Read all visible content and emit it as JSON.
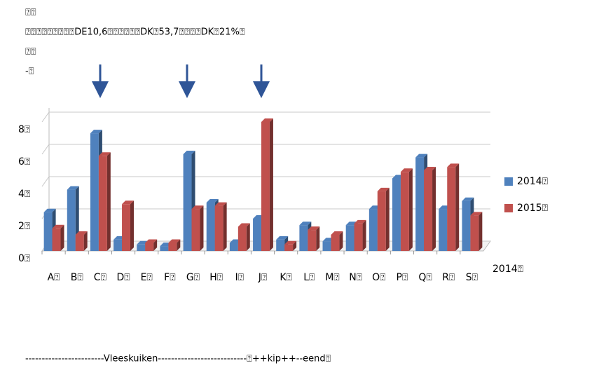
{
  "chart_data": {
    "type": "bar3d",
    "notes": [
      "⍰⍰",
      "⍰⍰⍰⍰⍰⍰⍰⍰⍰DE10,6⍰⍰⍰⍰⍰⍰DK⍰53,7⍰⍰⍰⍰DK⍰21%⍰",
      "⍰⍰",
      "-⍰"
    ],
    "categories": [
      "A⍰",
      "B⍰",
      "C⍰",
      "D⍰",
      "E⍰",
      "F⍰",
      "G⍰",
      "H⍰",
      "I⍰",
      "J⍰",
      "K⍰",
      "L⍰",
      "M⍰",
      "N⍰",
      "O⍰",
      "P⍰",
      "Q⍰",
      "R⍰",
      "S⍰"
    ],
    "series": [
      {
        "name": "2014⍰",
        "color": "#4f81bd",
        "values": [
          2.4,
          3.8,
          7.3,
          0.7,
          0.4,
          0.3,
          6.0,
          3.0,
          0.5,
          2.0,
          0.7,
          1.6,
          0.6,
          1.6,
          2.6,
          4.5,
          5.8,
          2.6,
          3.1
        ]
      },
      {
        "name": "2015⍰",
        "color": "#c0504d",
        "values": [
          1.4,
          1.0,
          5.9,
          2.9,
          0.5,
          0.5,
          2.6,
          2.8,
          1.5,
          8.0,
          0.4,
          1.3,
          1.0,
          1.7,
          3.7,
          4.9,
          5.0,
          5.2,
          2.2
        ]
      }
    ],
    "depth_label": "2014⍰",
    "x_label": "------------------------Vleeskuiken---------------------------⍰++kip++--eend⍰",
    "ylim": [
      0,
      8
    ],
    "yticks": [
      {
        "value": 0,
        "label": "0⍰"
      },
      {
        "value": 2,
        "label": "2⍰"
      },
      {
        "value": 4,
        "label": "4⍰"
      },
      {
        "value": 6,
        "label": "6⍰"
      },
      {
        "value": 8,
        "label": "8⍰"
      }
    ],
    "grid": true,
    "legend": "right"
  }
}
